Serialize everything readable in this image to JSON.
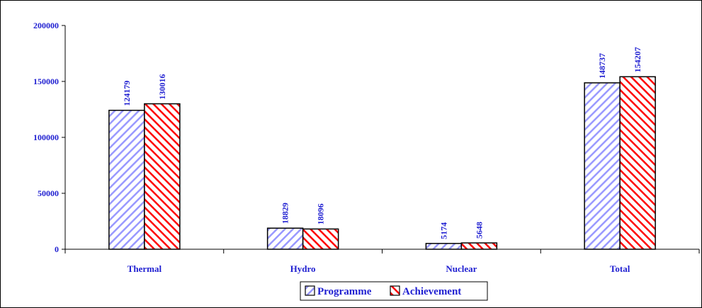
{
  "chart_data": {
    "type": "bar",
    "categories": [
      "Thermal",
      "Hydro",
      "Nuclear",
      "Total"
    ],
    "series": [
      {
        "name": "Programme",
        "values": [
          124179,
          18829,
          5174,
          148737
        ],
        "color": "#9999ff"
      },
      {
        "name": "Achievement",
        "values": [
          130016,
          18096,
          5648,
          154207
        ],
        "color": "#ff0000"
      }
    ],
    "yticks": [
      0,
      50000,
      100000,
      150000,
      200000
    ],
    "ylim": [
      0,
      200000
    ],
    "legend_position": "bottom",
    "grid": false,
    "data_labels": true
  }
}
